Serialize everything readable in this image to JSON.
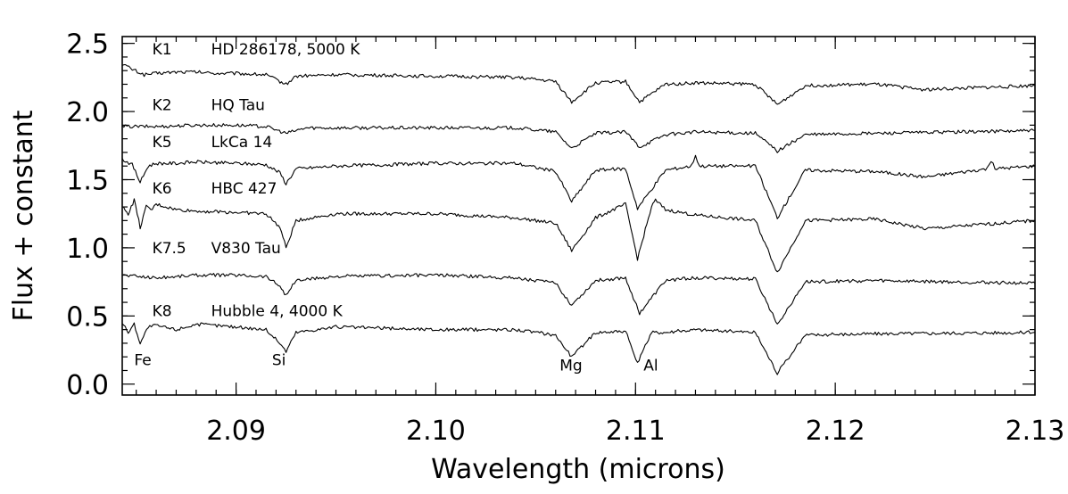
{
  "chart_data": {
    "type": "line",
    "xlabel": "Wavelength (microns)",
    "ylabel": "Flux + constant",
    "xlim": [
      2.0843,
      2.13
    ],
    "ylim": [
      -0.08,
      2.55
    ],
    "x_ticks": [
      {
        "value": 2.09,
        "label": "2.09"
      },
      {
        "value": 2.1,
        "label": "2.10"
      },
      {
        "value": 2.11,
        "label": "2.11"
      },
      {
        "value": 2.12,
        "label": "2.12"
      },
      {
        "value": 2.13,
        "label": "2.13"
      }
    ],
    "y_ticks": [
      {
        "value": 0.0,
        "label": "0.0"
      },
      {
        "value": 0.5,
        "label": "0.5"
      },
      {
        "value": 1.0,
        "label": "1.0"
      },
      {
        "value": 1.5,
        "label": "1.5"
      },
      {
        "value": 2.0,
        "label": "2.0"
      },
      {
        "value": 2.5,
        "label": "2.5"
      }
    ],
    "grid": false,
    "legend": "none",
    "series": [
      {
        "spectral_type": "K1",
        "star": "HD 286178, 5000 K",
        "label_x": 2.0858,
        "label_y": 2.42,
        "x": [
          2.0843,
          2.0848,
          2.0854,
          2.086,
          2.087,
          2.088,
          2.089,
          2.09,
          2.0915,
          2.0922,
          2.0925,
          2.093,
          2.095,
          2.1,
          2.104,
          2.106,
          2.1068,
          2.108,
          2.1095,
          2.1102,
          2.1115,
          2.113,
          2.116,
          2.1171,
          2.1185,
          2.122,
          2.1245,
          2.13
        ],
        "y": [
          2.35,
          2.31,
          2.27,
          2.28,
          2.29,
          2.29,
          2.28,
          2.28,
          2.27,
          2.22,
          2.2,
          2.26,
          2.27,
          2.26,
          2.25,
          2.22,
          2.07,
          2.21,
          2.22,
          2.07,
          2.2,
          2.21,
          2.2,
          2.05,
          2.19,
          2.2,
          2.16,
          2.19
        ]
      },
      {
        "spectral_type": "K2",
        "star": "HQ Tau",
        "label_x": 2.0858,
        "label_y": 2.01,
        "x": [
          2.0843,
          2.086,
          2.088,
          2.09,
          2.0915,
          2.0925,
          2.0935,
          2.096,
          2.1,
          2.104,
          2.106,
          2.1068,
          2.108,
          2.1095,
          2.1102,
          2.1115,
          2.113,
          2.116,
          2.1171,
          2.1185,
          2.122,
          2.13
        ],
        "y": [
          1.89,
          1.89,
          1.9,
          1.9,
          1.89,
          1.84,
          1.88,
          1.88,
          1.88,
          1.88,
          1.85,
          1.73,
          1.84,
          1.85,
          1.74,
          1.83,
          1.85,
          1.84,
          1.71,
          1.83,
          1.84,
          1.86
        ]
      },
      {
        "spectral_type": "K5",
        "star": "LkCa 14",
        "label_x": 2.0858,
        "label_y": 1.74,
        "x": [
          2.0843,
          2.0848,
          2.0852,
          2.0856,
          2.086,
          2.087,
          2.088,
          2.09,
          2.0915,
          2.0922,
          2.0925,
          2.093,
          2.095,
          2.1,
          2.104,
          2.106,
          2.1068,
          2.108,
          2.1095,
          2.1101,
          2.1115,
          2.1128,
          2.113,
          2.1132,
          2.116,
          2.1171,
          2.1185,
          2.122,
          2.1245,
          2.1276,
          2.1278,
          2.128,
          2.13
        ],
        "y": [
          1.65,
          1.61,
          1.48,
          1.6,
          1.62,
          1.62,
          1.63,
          1.62,
          1.61,
          1.55,
          1.47,
          1.58,
          1.6,
          1.62,
          1.62,
          1.56,
          1.34,
          1.57,
          1.58,
          1.29,
          1.57,
          1.6,
          1.68,
          1.6,
          1.6,
          1.22,
          1.57,
          1.56,
          1.52,
          1.58,
          1.64,
          1.58,
          1.6
        ]
      },
      {
        "spectral_type": "K6",
        "star": "HBC 427",
        "label_x": 2.0858,
        "label_y": 1.4,
        "x": [
          2.0843,
          2.0846,
          2.0849,
          2.0852,
          2.0855,
          2.0858,
          2.086,
          2.087,
          2.088,
          2.09,
          2.0915,
          2.0922,
          2.0925,
          2.093,
          2.095,
          2.1,
          2.104,
          2.106,
          2.1068,
          2.108,
          2.1095,
          2.1101,
          2.1108,
          2.111,
          2.1115,
          2.113,
          2.116,
          2.1171,
          2.1185,
          2.122,
          2.1245,
          2.13
        ],
        "y": [
          1.3,
          1.25,
          1.35,
          1.15,
          1.3,
          1.28,
          1.32,
          1.28,
          1.27,
          1.26,
          1.25,
          1.15,
          1.0,
          1.2,
          1.25,
          1.25,
          1.22,
          1.18,
          0.98,
          1.22,
          1.32,
          0.92,
          1.3,
          1.35,
          1.28,
          1.24,
          1.2,
          0.82,
          1.2,
          1.21,
          1.14,
          1.2
        ]
      },
      {
        "spectral_type": "K7.5",
        "star": "V830 Tau",
        "label_x": 2.0858,
        "label_y": 0.96,
        "x": [
          2.0843,
          2.086,
          2.088,
          2.09,
          2.0915,
          2.0922,
          2.0925,
          2.093,
          2.095,
          2.1,
          2.104,
          2.106,
          2.1068,
          2.108,
          2.1095,
          2.1102,
          2.1115,
          2.113,
          2.116,
          2.1171,
          2.1185,
          2.122,
          2.13
        ],
        "y": [
          0.8,
          0.78,
          0.8,
          0.8,
          0.79,
          0.72,
          0.65,
          0.76,
          0.79,
          0.8,
          0.78,
          0.74,
          0.58,
          0.76,
          0.78,
          0.52,
          0.76,
          0.78,
          0.77,
          0.44,
          0.75,
          0.76,
          0.74
        ]
      },
      {
        "spectral_type": "K8",
        "star": "Hubble 4, 4000 K",
        "label_x": 2.0858,
        "label_y": 0.5,
        "x": [
          2.0843,
          2.0846,
          2.0849,
          2.0852,
          2.0856,
          2.086,
          2.087,
          2.088,
          2.09,
          2.0915,
          2.0922,
          2.0925,
          2.093,
          2.095,
          2.1,
          2.104,
          2.106,
          2.1068,
          2.108,
          2.1095,
          2.1101,
          2.1108,
          2.1115,
          2.113,
          2.116,
          2.1171,
          2.1185,
          2.122,
          2.13
        ],
        "y": [
          0.45,
          0.38,
          0.44,
          0.3,
          0.42,
          0.43,
          0.4,
          0.44,
          0.42,
          0.4,
          0.3,
          0.24,
          0.38,
          0.42,
          0.4,
          0.4,
          0.36,
          0.2,
          0.38,
          0.39,
          0.15,
          0.38,
          0.38,
          0.4,
          0.38,
          0.08,
          0.36,
          0.37,
          0.38
        ]
      }
    ],
    "annotations": [
      {
        "text": "Fe",
        "x": 2.0849,
        "y": 0.14
      },
      {
        "text": "Si",
        "x": 2.0918,
        "y": 0.14
      },
      {
        "text": "Mg",
        "x": 2.1062,
        "y": 0.1
      },
      {
        "text": "Al",
        "x": 2.1104,
        "y": 0.1
      }
    ]
  }
}
